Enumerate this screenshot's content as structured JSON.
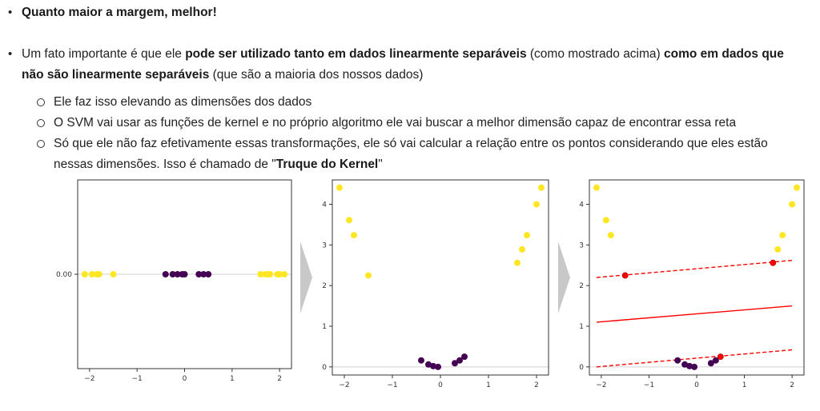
{
  "bullets": [
    {
      "bold": "Quanto maior a margem, melhor!"
    },
    {
      "t1": "Um fato importante é que ele ",
      "b1": "pode ser utilizado tanto em dados linearmente separáveis",
      "t2": " (como mostrado acima) ",
      "b2": "como em dados que",
      "b3": "não são linearmente separáveis",
      "t3": " (que são a maioria dos nossos dados)"
    }
  ],
  "sub_bullets": [
    {
      "text": "Ele faz isso elevando as dimensões dos dados"
    },
    {
      "text": "O SVM vai usar as funções de kernel e no próprio algoritmo ele vai buscar a melhor dimensão capaz de encontrar essa reta"
    },
    {
      "line1": "Só que ele não faz efetivamente essas transformações, ele só vai calcular a relação entre os pontos considerando que eles estão",
      "t_before": "nessas dimensões. Isso é chamado de \"",
      "bold": "Truque do Kernel",
      "t_after": "\""
    }
  ],
  "colors": {
    "yellow": "#fde725",
    "purple": "#440154",
    "red": "#ff0000",
    "arrow": "#c8c8c8"
  },
  "chart_data": [
    {
      "type": "scatter",
      "title": "",
      "x_ticks": [
        "−2",
        "−1",
        "0",
        "1",
        "2"
      ],
      "y_ticks": [
        "0.00"
      ],
      "xlim": [
        -2.25,
        2.25
      ],
      "ylim": [
        -0.05,
        0.05
      ],
      "series": [
        {
          "color": "yellow",
          "x": [
            -2.1,
            -1.95,
            -1.85,
            -1.8,
            -1.5,
            1.6,
            1.7,
            1.75,
            1.8,
            1.95,
            2.0,
            2.1
          ],
          "y": [
            0,
            0,
            0,
            0,
            0,
            0,
            0,
            0,
            0,
            0,
            0,
            0
          ]
        },
        {
          "color": "purple",
          "x": [
            -0.4,
            -0.25,
            -0.15,
            -0.05,
            0.0,
            0.3,
            0.4,
            0.5
          ],
          "y": [
            0,
            0,
            0,
            0,
            0,
            0,
            0,
            0
          ]
        }
      ]
    },
    {
      "type": "scatter",
      "title": "",
      "x_ticks": [
        "−2",
        "−1",
        "0",
        "1",
        "2"
      ],
      "y_ticks": [
        "0",
        "1",
        "2",
        "3",
        "4"
      ],
      "xlim": [
        -2.25,
        2.25
      ],
      "ylim": [
        -0.2,
        4.6
      ],
      "series": [
        {
          "color": "yellow",
          "x": [
            -2.1,
            -1.9,
            -1.8,
            -1.5,
            1.6,
            1.7,
            1.8,
            2.0,
            2.1
          ],
          "y": [
            4.41,
            3.61,
            3.24,
            2.25,
            2.56,
            2.89,
            3.24,
            4.0,
            4.41
          ]
        },
        {
          "color": "purple",
          "x": [
            -0.4,
            -0.25,
            -0.15,
            -0.05,
            0.3,
            0.4,
            0.5
          ],
          "y": [
            0.16,
            0.06,
            0.02,
            0.0,
            0.09,
            0.16,
            0.25
          ]
        }
      ]
    },
    {
      "type": "scatter",
      "title": "",
      "x_ticks": [
        "−2",
        "−1",
        "0",
        "1",
        "2"
      ],
      "y_ticks": [
        "0",
        "1",
        "2",
        "3",
        "4"
      ],
      "xlim": [
        -2.25,
        2.25
      ],
      "ylim": [
        -0.2,
        4.6
      ],
      "series": [
        {
          "color": "yellow",
          "x": [
            -2.1,
            -1.9,
            -1.8,
            1.7,
            1.8,
            2.0,
            2.1
          ],
          "y": [
            4.41,
            3.61,
            3.24,
            2.89,
            3.24,
            4.0,
            4.41
          ]
        },
        {
          "color": "purple",
          "x": [
            -0.4,
            -0.25,
            -0.15,
            -0.05,
            0.3,
            0.4
          ],
          "y": [
            0.16,
            0.06,
            0.02,
            0.0,
            0.09,
            0.16
          ]
        },
        {
          "color": "red",
          "x": [
            -1.5,
            1.6,
            0.5
          ],
          "y": [
            2.25,
            2.56,
            0.25
          ]
        }
      ],
      "lines": [
        {
          "style": "solid",
          "x": [
            -2.1,
            2.0
          ],
          "y": [
            1.1,
            1.5
          ]
        },
        {
          "style": "dashed",
          "x": [
            -2.1,
            2.0
          ],
          "y": [
            2.2,
            2.62
          ]
        },
        {
          "style": "dashed",
          "x": [
            -2.1,
            2.0
          ],
          "y": [
            0.0,
            0.42
          ]
        }
      ]
    }
  ]
}
